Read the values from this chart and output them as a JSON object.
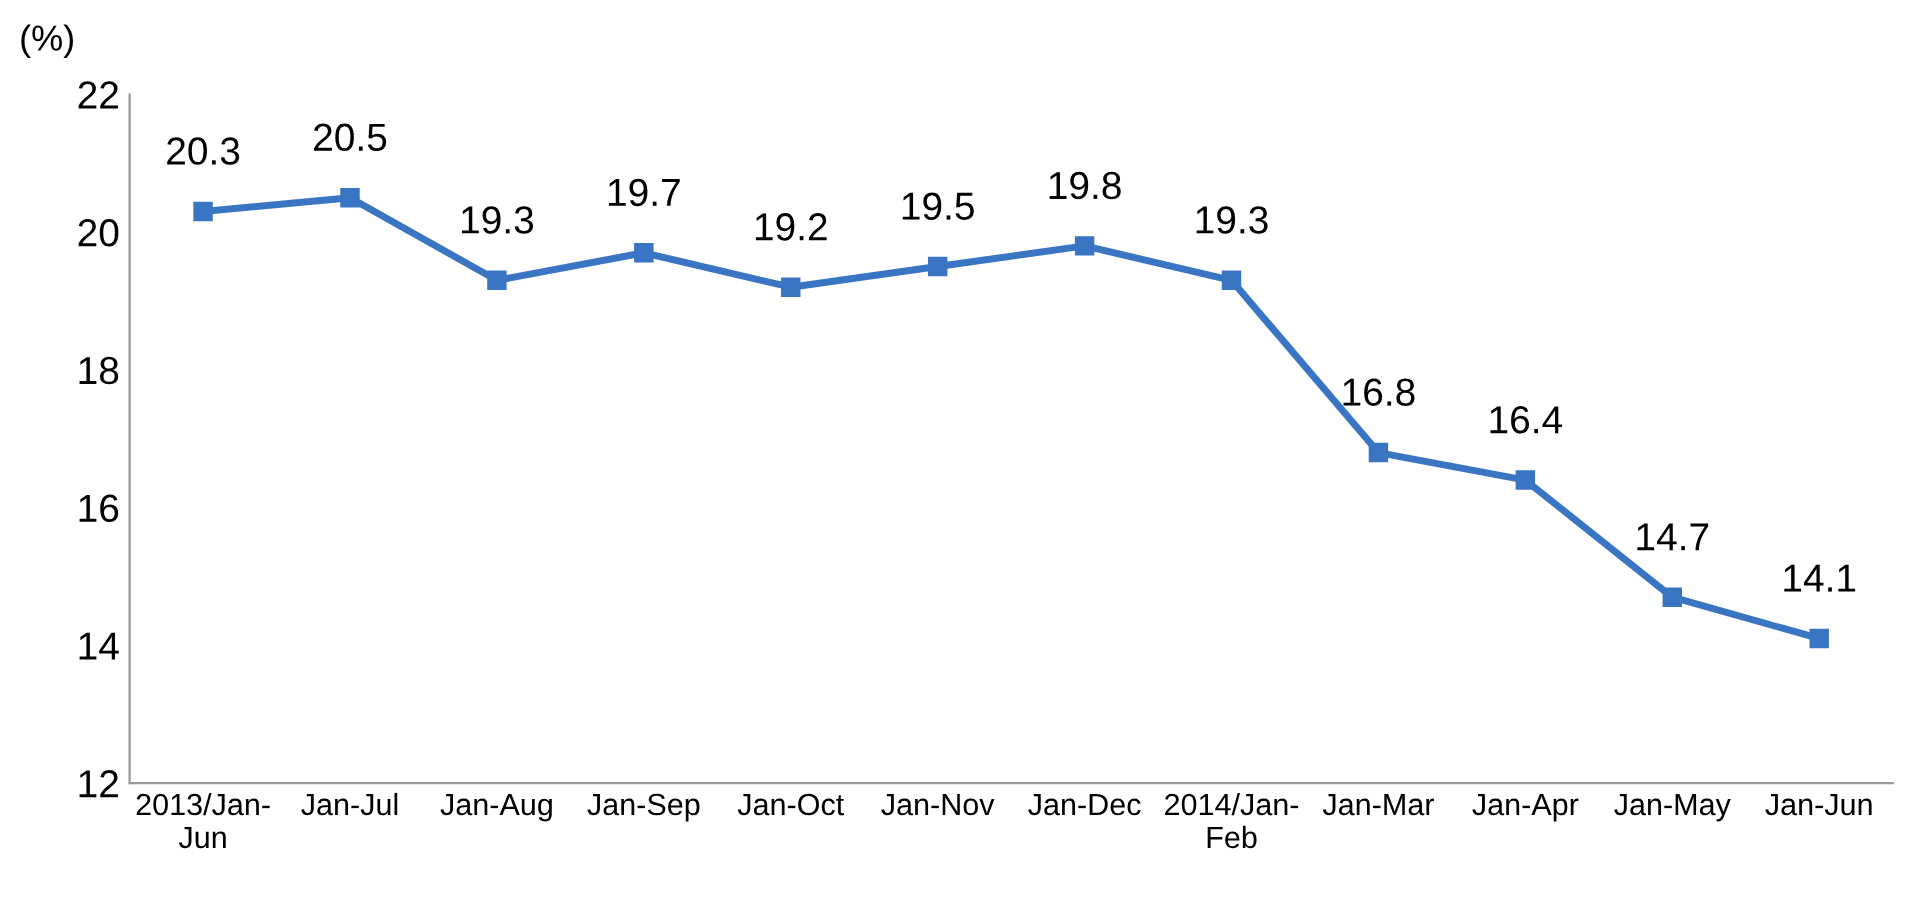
{
  "chart_data": {
    "type": "line",
    "ylabel": "(%)",
    "categories": [
      "2013/Jan-\nJun",
      "Jan-Jul",
      "Jan-Aug",
      "Jan-Sep",
      "Jan-Oct",
      "Jan-Nov",
      "Jan-Dec",
      "2014/Jan-\nFeb",
      "Jan-Mar",
      "Jan-Apr",
      "Jan-May",
      "Jan-Jun"
    ],
    "series": [
      {
        "color": "#3a75c4",
        "values": [
          20.3,
          20.5,
          19.3,
          19.7,
          19.2,
          19.5,
          19.8,
          19.3,
          16.8,
          16.4,
          14.7,
          14.1
        ]
      }
    ],
    "ylim": [
      12,
      22
    ],
    "yticks": [
      12,
      14,
      16,
      18,
      20,
      22
    ],
    "data_labels": true,
    "marker": "square",
    "line_style": "solid",
    "grid": false,
    "legend": false
  }
}
